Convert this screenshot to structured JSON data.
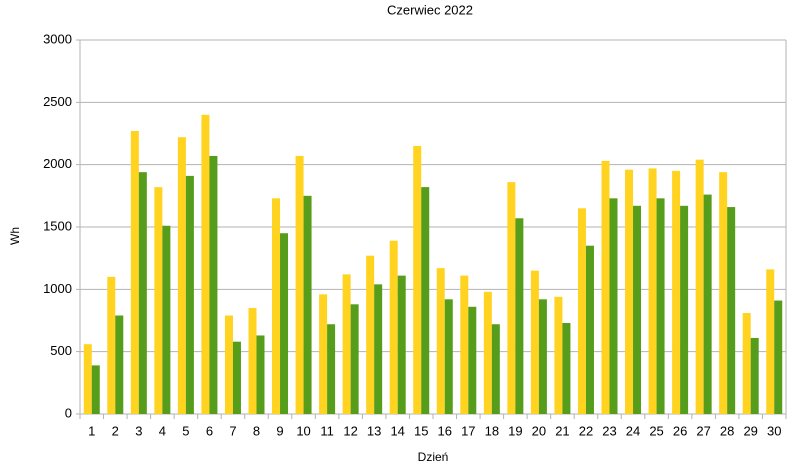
{
  "chart_data": {
    "type": "bar",
    "title": "Czerwiec 2022",
    "x_label": "Dzień",
    "y_label": "Wh",
    "categories": [
      "1",
      "2",
      "3",
      "4",
      "5",
      "6",
      "7",
      "8",
      "9",
      "10",
      "11",
      "12",
      "13",
      "14",
      "15",
      "16",
      "17",
      "18",
      "19",
      "20",
      "21",
      "22",
      "23",
      "24",
      "25",
      "26",
      "27",
      "28",
      "29",
      "30"
    ],
    "series": [
      {
        "color": "#ffd320",
        "values": [
          560,
          1100,
          2270,
          1820,
          2220,
          2400,
          790,
          850,
          1730,
          2070,
          960,
          1120,
          1270,
          1390,
          2150,
          1170,
          1110,
          980,
          1860,
          1150,
          940,
          1650,
          2030,
          1960,
          1970,
          1950,
          2040,
          1940,
          810,
          1160
        ]
      },
      {
        "color": "#579d1c",
        "values": [
          390,
          790,
          1940,
          1510,
          1910,
          2070,
          580,
          630,
          1450,
          1750,
          720,
          880,
          1040,
          1110,
          1820,
          920,
          860,
          720,
          1570,
          920,
          730,
          1350,
          1730,
          1670,
          1730,
          1670,
          1760,
          1660,
          610,
          910
        ]
      }
    ],
    "ylim": [
      0,
      3000
    ],
    "yticks": [
      0,
      500,
      1000,
      1500,
      2000,
      2500,
      3000
    ],
    "grid": true
  }
}
